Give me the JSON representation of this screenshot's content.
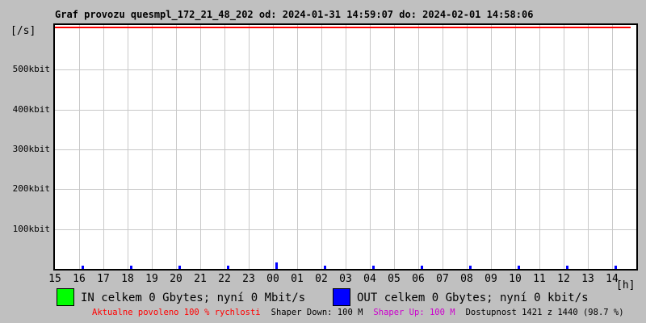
{
  "title": "Graf provozu quesmpl_172_21_48_202 od: 2024-01-31 14:59:07 do: 2024-02-01 14:58:06",
  "axes": {
    "y_unit_label": "[/s]",
    "x_unit_label": "[h]"
  },
  "chart_data": {
    "type": "line",
    "title": "Graf provozu quesmpl_172_21_48_202 od: 2024-01-31 14:59:07 do: 2024-02-01 14:58:06",
    "x_tick_labels": [
      "15",
      "16",
      "17",
      "18",
      "19",
      "20",
      "21",
      "22",
      "23",
      "00",
      "01",
      "02",
      "03",
      "04",
      "05",
      "06",
      "07",
      "08",
      "09",
      "10",
      "11",
      "12",
      "13",
      "14"
    ],
    "x_unit": "[h]",
    "y_tick_labels": [
      "100kbit",
      "200kbit",
      "300kbit",
      "400kbit",
      "500kbit"
    ],
    "y_tick_values_bit_s": [
      100000,
      200000,
      300000,
      400000,
      500000
    ],
    "ylim": [
      0,
      612000
    ],
    "grid": true,
    "plot_bg": "#ffffff",
    "grid_color": "#c9c9c9",
    "series": [
      {
        "name": "IN",
        "color": "#00ff00",
        "values": [
          0,
          0,
          0,
          0,
          0,
          0,
          0,
          0,
          0,
          0,
          0,
          0,
          0,
          0,
          0,
          0,
          0,
          0,
          0,
          0,
          0,
          0,
          0,
          0
        ]
      },
      {
        "name": "OUT",
        "color": "#0000ff",
        "values": [
          0,
          0,
          0,
          0,
          0,
          0,
          0,
          0,
          0,
          0,
          0,
          0,
          0,
          0,
          0,
          0,
          0,
          0,
          0,
          0,
          0,
          0,
          0,
          0
        ]
      }
    ],
    "limit_line": {
      "color": "#ff0000",
      "position": "top_of_plot"
    },
    "activity_ticks": {
      "color": "#0000ff",
      "at_hours": [
        "16",
        "18",
        "20",
        "22",
        "00",
        "02",
        "04",
        "06",
        "08",
        "10",
        "12",
        "14"
      ],
      "taller_at_hour": "00"
    }
  },
  "legend": {
    "items": [
      {
        "color": "#00ff00",
        "label": "IN celkem 0 Gbytes; nyní 0 Mbit/s"
      },
      {
        "color": "#0000ff",
        "label": "OUT celkem 0 Gbytes; nyní 0 kbit/s"
      }
    ]
  },
  "footer": {
    "segments": [
      {
        "text": "Aktualne povoleno 100 % rychlosti",
        "color": "#ff0000"
      },
      {
        "text": "Shaper Down: 100 M",
        "color": "#000000"
      },
      {
        "text": "Shaper Up: 100 M",
        "color": "#cc00cc"
      },
      {
        "text": "Dostupnost 1421 z 1440 (98.7 %)",
        "color": "#000000"
      }
    ]
  }
}
